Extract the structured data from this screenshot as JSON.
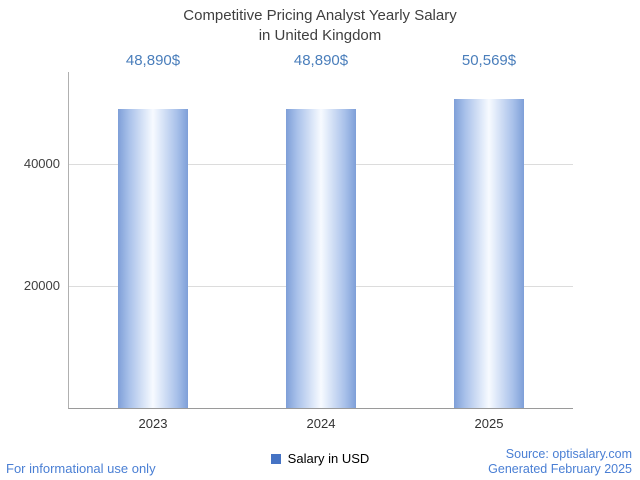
{
  "chart_data": {
    "type": "bar",
    "title": "Competitive Pricing Analyst Yearly Salary in United Kingdom",
    "title_lines": [
      "Competitive Pricing Analyst Yearly Salary",
      "in United Kingdom"
    ],
    "categories": [
      "2023",
      "2024",
      "2025"
    ],
    "values": [
      48890,
      48890,
      50569
    ],
    "value_labels": [
      "48,890$",
      "48,890$",
      "50,569$"
    ],
    "series_name": "Salary in USD",
    "xlabel": "",
    "ylabel": "",
    "ylim": [
      0,
      55000
    ],
    "yticks": [
      {
        "value": 20000,
        "label": "20000"
      },
      {
        "value": 40000,
        "label": "40000"
      }
    ],
    "grid": "horizontal",
    "legend_position": "bottom-center",
    "colors": {
      "bar_edge": "#7e9fd8",
      "bar_center": "#f7faff",
      "legend_swatch": "#4573c4",
      "value_label_blue": "#4a7ebb",
      "footer_link_blue": "#4a7fd4",
      "title_gray": "#3f3f3f"
    }
  },
  "footer": {
    "disclaimer": "For informational use only",
    "source": "Source: optisalary.com",
    "generated": "Generated February 2025"
  }
}
